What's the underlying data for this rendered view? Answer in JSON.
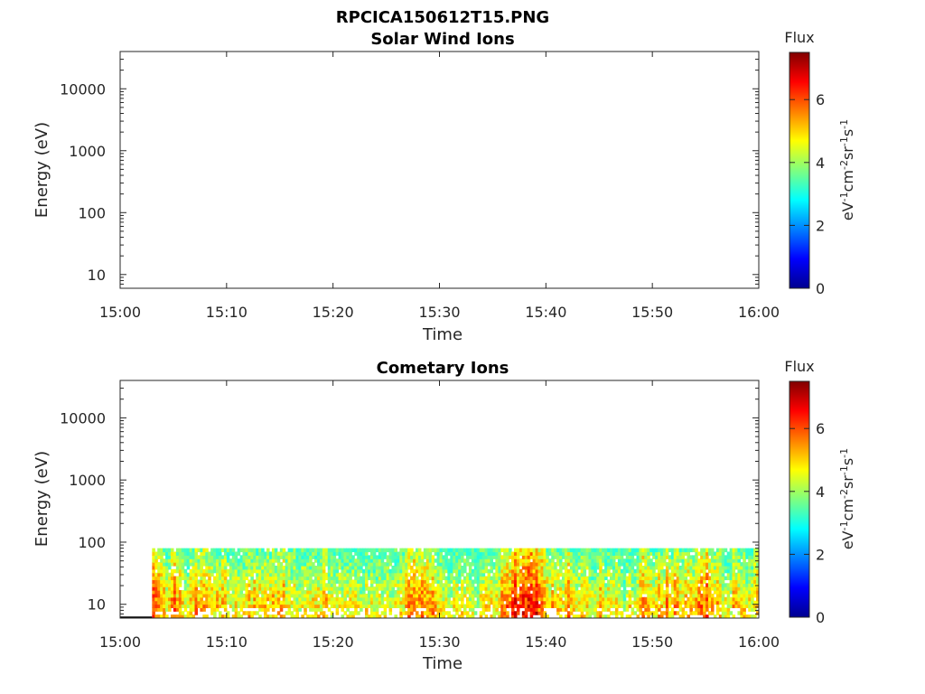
{
  "figure": {
    "title": "RPCICA150612T15.PNG"
  },
  "chart_data": [
    {
      "type": "heatmap",
      "title": "Solar Wind Ions",
      "xlabel": "Time",
      "ylabel": "Energy (eV)",
      "x_ticks": [
        "15:00",
        "15:10",
        "15:20",
        "15:30",
        "15:40",
        "15:50",
        "16:00"
      ],
      "xlim": [
        "15:00",
        "16:00"
      ],
      "y_scale": "log",
      "y_ticks": [
        "10",
        "100",
        "1000",
        "10000"
      ],
      "ylim": [
        6,
        40000
      ],
      "colorbar": {
        "label": "Flux",
        "unit": "eV-1cm-2sr-1s-1",
        "ticks": [
          "0",
          "2",
          "4",
          "6"
        ],
        "clim": [
          0,
          7.5
        ],
        "colormap": "jet"
      },
      "data": "empty"
    },
    {
      "type": "heatmap",
      "title": "Cometary Ions",
      "xlabel": "Time",
      "ylabel": "Energy (eV)",
      "x_ticks": [
        "15:00",
        "15:10",
        "15:20",
        "15:30",
        "15:40",
        "15:50",
        "16:00"
      ],
      "xlim": [
        "15:00",
        "16:00"
      ],
      "y_scale": "log",
      "y_ticks": [
        "10",
        "100",
        "1000",
        "10000"
      ],
      "ylim": [
        6,
        40000
      ],
      "colorbar": {
        "label": "Flux",
        "unit": "eV-1cm-2sr-1s-1",
        "ticks": [
          "0",
          "2",
          "4",
          "6"
        ],
        "clim": [
          0,
          7.5
        ],
        "colormap": "jet"
      },
      "data_extent": {
        "time": [
          "15:03",
          "16:00"
        ],
        "energy_ev": [
          6,
          80
        ]
      },
      "flux_profile": {
        "time": [
          "15:03",
          "15:04",
          "15:05",
          "15:06",
          "15:07",
          "15:08",
          "15:09",
          "15:10",
          "15:11",
          "15:12",
          "15:13",
          "15:14",
          "15:15",
          "15:16",
          "15:17",
          "15:18",
          "15:19",
          "15:20",
          "15:21",
          "15:22",
          "15:23",
          "15:24",
          "15:25",
          "15:26",
          "15:27",
          "15:28",
          "15:29",
          "15:30",
          "15:31",
          "15:32",
          "15:33",
          "15:34",
          "15:35",
          "15:36",
          "15:37",
          "15:38",
          "15:39",
          "15:40",
          "15:41",
          "15:42",
          "15:43",
          "15:44",
          "15:45",
          "15:46",
          "15:47",
          "15:48",
          "15:49",
          "15:50",
          "15:51",
          "15:52",
          "15:53",
          "15:54",
          "15:55",
          "15:56",
          "15:57",
          "15:58",
          "15:59",
          "16:00"
        ],
        "peak_flux": [
          6.8,
          5.6,
          6.2,
          5.4,
          6.0,
          6.3,
          5.7,
          5.5,
          5.6,
          5.7,
          5.5,
          5.8,
          6.0,
          5.4,
          5.2,
          5.6,
          5.8,
          5.5,
          5.3,
          5.2,
          5.1,
          5.2,
          5.3,
          5.6,
          6.0,
          6.5,
          6.2,
          5.4,
          5.2,
          5.5,
          5.0,
          5.1,
          5.6,
          6.2,
          6.8,
          7.2,
          7.0,
          5.8,
          5.6,
          6.0,
          5.5,
          5.2,
          5.8,
          5.4,
          5.0,
          5.2,
          6.2,
          5.8,
          5.9,
          6.0,
          5.7,
          5.9,
          6.5,
          5.8,
          5.5,
          5.9,
          5.4,
          6.5
        ]
      }
    }
  ]
}
